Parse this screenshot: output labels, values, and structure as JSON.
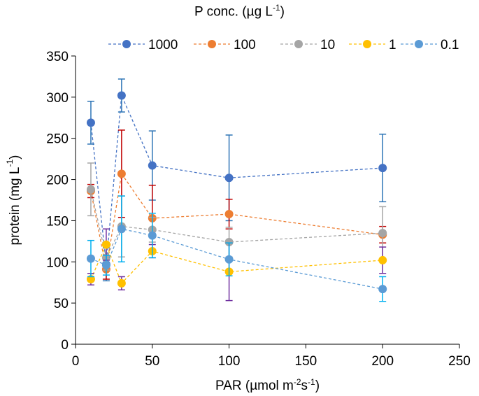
{
  "chart_data": {
    "type": "scatter",
    "legend_title": "P conc. (µg L",
    "legend_title_sup": "-1",
    "legend_title_close": ")",
    "xlabel": "PAR (µmol m",
    "xlabel_sup1": "-2",
    "xlabel_mid": "s",
    "xlabel_sup2": "-1",
    "xlabel_close": ")",
    "ylabel": "protein (mg L",
    "ylabel_sup": "-1",
    "ylabel_close": ")",
    "xlim": [
      0,
      250
    ],
    "ylim": [
      0,
      350
    ],
    "xticks": [
      0,
      50,
      100,
      150,
      200,
      250
    ],
    "yticks": [
      0,
      50,
      100,
      150,
      200,
      250,
      300,
      350
    ],
    "grid": false,
    "legend_position": "top",
    "line_style": "dashed",
    "x": [
      10,
      20,
      30,
      50,
      100,
      200
    ],
    "series": [
      {
        "name": "1000",
        "color": "#4472C4",
        "errcolor": "#2E75B6",
        "values": [
          269,
          97,
          302,
          217,
          202,
          214
        ],
        "errors": [
          26,
          20,
          20,
          42,
          52,
          41
        ]
      },
      {
        "name": "100",
        "color": "#ED7D31",
        "errcolor": "#C00000",
        "values": [
          186,
          91,
          207,
          153,
          158,
          133
        ],
        "errors": [
          8,
          12,
          53,
          40,
          18,
          10
        ]
      },
      {
        "name": "10",
        "color": "#A5A5A5",
        "errcolor": "#A5A5A5",
        "values": [
          188,
          105,
          143,
          139,
          124,
          135
        ],
        "errors": [
          32,
          15,
          37,
          15,
          18,
          32
        ]
      },
      {
        "name": "1",
        "color": "#FFC000",
        "errcolor": "#7030A0",
        "values": [
          79,
          121,
          74,
          113,
          88,
          102
        ],
        "errors": [
          7,
          19,
          8,
          8,
          35,
          16
        ]
      },
      {
        "name": "0.1",
        "color": "#5B9BD5",
        "errcolor": "#00B0F0",
        "values": [
          104,
          96,
          140,
          132,
          103,
          67
        ],
        "errors": [
          22,
          12,
          40,
          27,
          20,
          15
        ]
      }
    ]
  }
}
